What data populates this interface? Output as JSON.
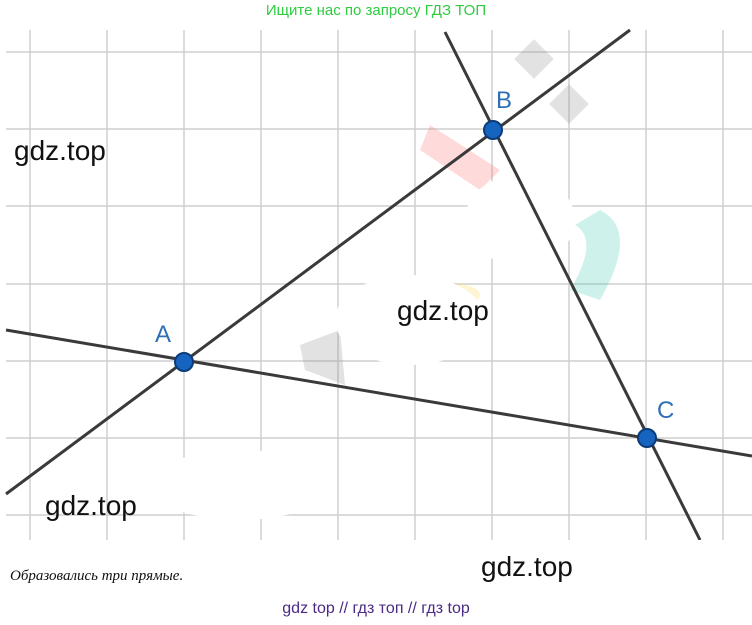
{
  "top_banner": "Ищите нас по запросу ГДЗ ТОП",
  "watermarks": [
    "gdz.top",
    "gdz.top",
    "gdz.top",
    "gdz.top"
  ],
  "points": {
    "A": {
      "label": "A",
      "color": "#1565c0"
    },
    "B": {
      "label": "B",
      "color": "#1565c0"
    },
    "C": {
      "label": "C",
      "color": "#1565c0"
    }
  },
  "caption": "Образовались три прямые.",
  "footer": "gdz top  //  гдз топ  //  гдз top",
  "colors": {
    "line": "#3a3a3a",
    "grid": "#cfcfcf",
    "point": "#1565c0",
    "point_label": "#2f6fb3"
  }
}
